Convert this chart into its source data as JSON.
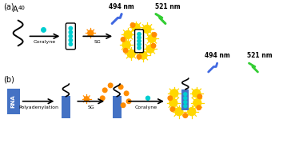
{
  "background_color": "#ffffff",
  "panel_a_label": "(a)",
  "panel_b_label": "(b)",
  "a40_label": "A",
  "a40_subscript": "40",
  "coralyne_label": "Coralyne",
  "sg_label_1": "SG",
  "sg_label_2": "SG",
  "coralyne_label_b": "Coralyne",
  "polyadenylation_label": "Polyadenylation",
  "nm494_label": "494 nm",
  "nm521_label": "521 nm",
  "nm494_label_b": "494 nm",
  "nm521_label_b": "521 nm",
  "rna_label": "RNA",
  "teal_color": "#00CED1",
  "orange_color": "#FF8C00",
  "blue_rect_color": "#4472C4",
  "yellow_color": "#FFD700",
  "bolt_blue_color": "#4169E1",
  "bolt_green_color": "#32CD32",
  "black_color": "#000000"
}
